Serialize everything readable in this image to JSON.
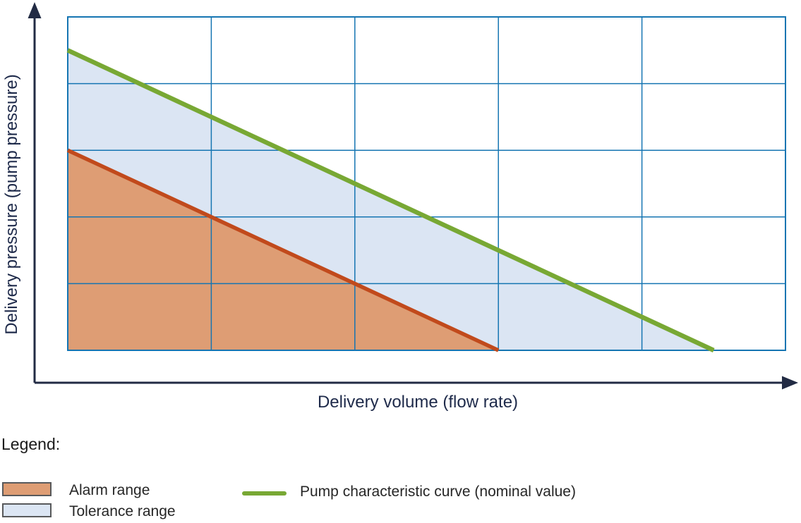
{
  "chart": {
    "xlabel": "Delivery volume (flow rate)",
    "ylabel": "Delivery pressure (pump pressure)"
  },
  "legend": {
    "title": "Legend:",
    "items": [
      {
        "swatch": "alarm-fill-swatch",
        "label": "Alarm range"
      },
      {
        "swatch": "tolerance-fill-swatch",
        "label": "Tolerance range"
      },
      {
        "swatch": "curve-line-swatch",
        "label": "Pump characteristic curve (nominal value)"
      }
    ]
  },
  "chart_data": {
    "type": "area",
    "title": "",
    "xlabel": "Delivery volume (flow rate)",
    "ylabel": "Delivery pressure (pump pressure)",
    "axes_numeric_labels": false,
    "x_range_grid_units": [
      0,
      5
    ],
    "y_range_grid_units": [
      0,
      5
    ],
    "grid": {
      "on": true,
      "columns": 5,
      "rows": 5
    },
    "series": [
      {
        "name": "Pump characteristic curve (nominal value)",
        "type": "line",
        "color": "#78a834",
        "points": [
          [
            0,
            4.5
          ],
          [
            4.5,
            0
          ]
        ]
      },
      {
        "name": "Alarm limit line",
        "type": "line",
        "color": "#c14a1c",
        "points": [
          [
            0,
            3
          ],
          [
            3,
            0
          ]
        ]
      }
    ],
    "areas": [
      {
        "name": "Tolerance range",
        "color": "#dbe5f3",
        "polygon": [
          [
            0,
            4.5
          ],
          [
            0,
            3
          ],
          [
            3,
            0
          ],
          [
            4.5,
            0
          ]
        ]
      },
      {
        "name": "Alarm range",
        "color": "#de9d74",
        "polygon": [
          [
            0,
            3
          ],
          [
            0,
            0
          ],
          [
            3,
            0
          ]
        ]
      }
    ],
    "colors": {
      "grid": "#1575b2",
      "axis": "#222b44",
      "curve_green": "#78a834",
      "alarm_line_red": "#c14a1c",
      "alarm_fill": "#de9d74",
      "tolerance_fill": "#dbe5f3",
      "swatch_border": "#58595b",
      "label_navy": "#1e2a4a",
      "legend_text": "#262626"
    },
    "legend_position": "below-chart"
  }
}
